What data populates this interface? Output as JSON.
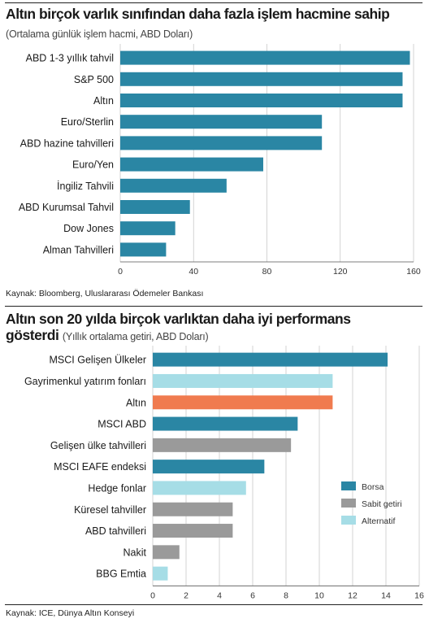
{
  "chart_data": [
    {
      "type": "bar",
      "title": "Altın birçok varlık sınıfından daha fazla işlem hacmine sahip",
      "subtitle": "(Ortalama günlük işlem hacmi, ABD Doları)",
      "source": "Kaynak: Bloomberg, Uluslararası Ödemeler Bankası",
      "orientation": "horizontal",
      "categories": [
        "ABD 1-3 yıllık tahvil",
        "S&P 500",
        "Altın",
        "Euro/Sterlin",
        "ABD hazine tahvilleri",
        "Euro/Yen",
        "İngiliz Tahvili",
        "ABD Kurumsal Tahvil",
        "Dow Jones",
        "Alman Tahvilleri"
      ],
      "values": [
        158,
        154,
        154,
        110,
        110,
        78,
        58,
        38,
        30,
        25
      ],
      "xlim": [
        0,
        160
      ],
      "xticks": [
        "0",
        "40",
        "80",
        "120",
        "160"
      ],
      "bar_color": "#2a86a4",
      "grid": true
    },
    {
      "type": "bar",
      "title_line1": "Altın son 20 yılda birçok varlıktan daha iyi performans",
      "title_line2": "gösterdi",
      "subtitle": "(Yıllık ortalama getiri, ABD Doları)",
      "source": "Kaynak: ICE, Dünya Altın Konseyi",
      "orientation": "horizontal",
      "categories": [
        "MSCI Gelişen Ülkeler",
        "Gayrimenkul yatırım fonları",
        "Altın",
        "MSCI ABD",
        "Gelişen ülke tahvilleri",
        "MSCI EAFE endeksi",
        "Hedge fonlar",
        "Küresel tahviller",
        "ABD tahvilleri",
        "Nakit",
        "BBG Emtia"
      ],
      "values": [
        14.1,
        10.8,
        10.8,
        8.7,
        8.3,
        6.7,
        5.6,
        4.8,
        4.8,
        1.6,
        0.9
      ],
      "groups": [
        "Borsa",
        "Alternatif",
        "Altın",
        "Borsa",
        "Sabit getiri",
        "Borsa",
        "Alternatif",
        "Sabit getiri",
        "Sabit getiri",
        "Sabit getiri",
        "Alternatif"
      ],
      "xlim": [
        0,
        16
      ],
      "xticks": [
        "0",
        "2",
        "4",
        "6",
        "8",
        "10",
        "12",
        "14",
        "16"
      ],
      "colors": {
        "Borsa": "#2a86a4",
        "Sabit getiri": "#9a9a9a",
        "Alternatif": "#a6dde6",
        "Altın": "#f07b4f"
      },
      "legend": [
        "Borsa",
        "Sabit getiri",
        "Alternatif"
      ],
      "legend_position": "right",
      "grid": true
    }
  ]
}
